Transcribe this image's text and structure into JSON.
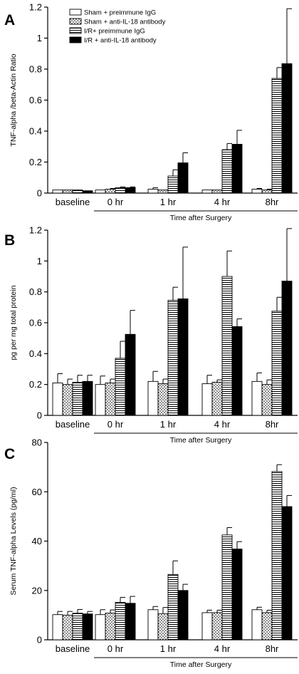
{
  "legend": [
    {
      "name": "Sham + preimmune IgG",
      "pattern": "white"
    },
    {
      "name": "Sham + anti-IL-18 antibody",
      "pattern": "dots"
    },
    {
      "name": "I/R+ preimmune IgG",
      "pattern": "hstripes"
    },
    {
      "name": "I/R + anti-IL-18 antibody",
      "pattern": "black"
    }
  ],
  "chart_data": [
    {
      "type": "bar",
      "panel": "A",
      "ylabel": "TNF-alpha /beta-Actin Ratio",
      "xlabel": "Time after Surgery",
      "categories": [
        "baseline",
        "0 hr",
        "1 hr",
        "4 hr",
        "8hr"
      ],
      "ylim": [
        0,
        1.2
      ],
      "yticks": [
        0,
        0.2,
        0.4,
        0.6,
        0.8,
        1,
        1.2
      ],
      "ytick_labels": [
        "0",
        "0.2",
        "0.4",
        "0.6",
        "0.8",
        "1",
        "1.2"
      ],
      "series": [
        {
          "name": "Sham + preimmune IgG",
          "values": [
            0.02,
            0.02,
            0.025,
            0.02,
            0.025
          ],
          "errors": [
            0.0,
            0.0,
            0.01,
            0.0,
            0.005
          ]
        },
        {
          "name": "Sham + anti-IL-18 antibody",
          "values": [
            0.02,
            0.025,
            0.02,
            0.02,
            0.02
          ],
          "errors": [
            0.0,
            0.005,
            0.0,
            0.0,
            0.005
          ]
        },
        {
          "name": "I/R+ preimmune IgG",
          "values": [
            0.02,
            0.035,
            0.11,
            0.28,
            0.74
          ],
          "errors": [
            0.0,
            0.005,
            0.04,
            0.04,
            0.07
          ]
        },
        {
          "name": "I/R + anti-IL-18 antibody",
          "values": [
            0.015,
            0.035,
            0.195,
            0.315,
            0.835
          ],
          "errors": [
            0.0,
            0.005,
            0.065,
            0.09,
            0.355
          ]
        }
      ]
    },
    {
      "type": "bar",
      "panel": "B",
      "ylabel": "pg per mg total protein",
      "xlabel": "Time after Surgery",
      "categories": [
        "baseline",
        "0 hr",
        "1 hr",
        "4 hr",
        "8hr"
      ],
      "ylim": [
        0,
        1.2
      ],
      "yticks": [
        0,
        0.2,
        0.4,
        0.6,
        0.8,
        1,
        1.2
      ],
      "ytick_labels": [
        "0",
        "0.2",
        "0.4",
        "0.6",
        "0.8",
        "1",
        "1.2"
      ],
      "series": [
        {
          "name": "Sham + preimmune IgG",
          "values": [
            0.21,
            0.2,
            0.22,
            0.205,
            0.22
          ],
          "errors": [
            0.06,
            0.055,
            0.065,
            0.055,
            0.055
          ]
        },
        {
          "name": "Sham + anti-IL-18 antibody",
          "values": [
            0.2,
            0.21,
            0.205,
            0.215,
            0.2
          ],
          "errors": [
            0.035,
            0.025,
            0.03,
            0.015,
            0.03
          ]
        },
        {
          "name": "I/R+ preimmune IgG",
          "values": [
            0.215,
            0.37,
            0.745,
            0.9,
            0.675
          ],
          "errors": [
            0.045,
            0.11,
            0.085,
            0.165,
            0.09
          ]
        },
        {
          "name": "I/R + anti-IL-18 antibody",
          "values": [
            0.22,
            0.525,
            0.755,
            0.575,
            0.87
          ],
          "errors": [
            0.04,
            0.155,
            0.335,
            0.05,
            0.34
          ]
        }
      ]
    },
    {
      "type": "bar",
      "panel": "C",
      "ylabel": "Serum TNF-alpha Levels (pg/ml)",
      "xlabel": "Time after Surgery",
      "categories": [
        "baseline",
        "0 hr",
        "1 hr",
        "4 hr",
        "8hr"
      ],
      "ylim": [
        0,
        80
      ],
      "yticks": [
        0,
        20,
        40,
        60,
        80
      ],
      "ytick_labels": [
        "0",
        "20",
        "40",
        "60",
        "80"
      ],
      "series": [
        {
          "name": "Sham + preimmune IgG",
          "values": [
            10.2,
            10.2,
            12.2,
            11.0,
            12.2
          ],
          "errors": [
            1.3,
            2.0,
            1.3,
            1.0,
            1.0
          ]
        },
        {
          "name": "Sham + anti-IL-18 antibody",
          "values": [
            10.0,
            10.8,
            10.6,
            11.0,
            11.0
          ],
          "errors": [
            1.5,
            1.3,
            2.5,
            1.0,
            1.0
          ]
        },
        {
          "name": "I/R+ preimmune IgG",
          "values": [
            10.8,
            15.2,
            26.5,
            42.5,
            68.2
          ],
          "errors": [
            1.5,
            2.0,
            5.5,
            3.0,
            2.8
          ]
        },
        {
          "name": "I/R + anti-IL-18 antibody",
          "values": [
            10.5,
            14.8,
            20.0,
            36.8,
            54.0
          ],
          "errors": [
            1.0,
            2.8,
            2.5,
            3.0,
            4.5
          ]
        }
      ]
    }
  ]
}
